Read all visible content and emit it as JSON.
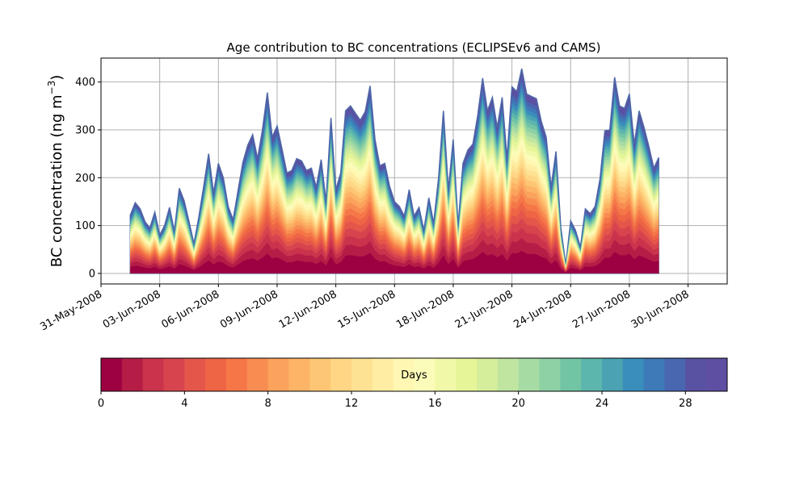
{
  "chart_data": {
    "type": "area",
    "title": "Age contribution to BC concentrations (ECLIPSEv6 and CAMS)",
    "ylabel": "BC concentration (ng m",
    "ylabel_sup": "−3",
    "ylabel_close": ")",
    "xlabel": "",
    "ylim": [
      -22,
      450
    ],
    "yticks": [
      0,
      100,
      200,
      300,
      400
    ],
    "xlim": [
      "2008-05-31T00:00",
      "2008-07-02T00:00"
    ],
    "xtick_labels": [
      "31-May-2008",
      "03-Jun-2008",
      "06-Jun-2008",
      "09-Jun-2008",
      "12-Jun-2008",
      "15-Jun-2008",
      "18-Jun-2008",
      "21-Jun-2008",
      "24-Jun-2008",
      "27-Jun-2008",
      "30-Jun-2008"
    ],
    "grid": true,
    "stacked": true,
    "series_note": "Stacked contributions by age (days), 30 bands 0–30, colour scale Spectral",
    "total": [
      [
        "2008-06-01T12:00",
        122
      ],
      [
        "2008-06-01T18:00",
        148
      ],
      [
        "2008-06-02T00:00",
        135
      ],
      [
        "2008-06-02T06:00",
        108
      ],
      [
        "2008-06-02T12:00",
        95
      ],
      [
        "2008-06-02T18:00",
        128
      ],
      [
        "2008-06-03T00:00",
        80
      ],
      [
        "2008-06-03T06:00",
        100
      ],
      [
        "2008-06-03T12:00",
        138
      ],
      [
        "2008-06-03T18:00",
        88
      ],
      [
        "2008-06-04T00:00",
        178
      ],
      [
        "2008-06-04T06:00",
        152
      ],
      [
        "2008-06-04T12:00",
        108
      ],
      [
        "2008-06-04T18:00",
        62
      ],
      [
        "2008-06-05T00:00",
        118
      ],
      [
        "2008-06-05T06:00",
        182
      ],
      [
        "2008-06-05T12:00",
        250
      ],
      [
        "2008-06-05T18:00",
        168
      ],
      [
        "2008-06-06T00:00",
        230
      ],
      [
        "2008-06-06T06:00",
        200
      ],
      [
        "2008-06-06T12:00",
        140
      ],
      [
        "2008-06-06T18:00",
        112
      ],
      [
        "2008-06-07T00:00",
        172
      ],
      [
        "2008-06-07T06:00",
        232
      ],
      [
        "2008-06-07T12:00",
        268
      ],
      [
        "2008-06-07T18:00",
        290
      ],
      [
        "2008-06-08T00:00",
        240
      ],
      [
        "2008-06-08T06:00",
        300
      ],
      [
        "2008-06-08T12:00",
        378
      ],
      [
        "2008-06-08T18:00",
        285
      ],
      [
        "2008-06-09T00:00",
        308
      ],
      [
        "2008-06-09T06:00",
        260
      ],
      [
        "2008-06-09T12:00",
        210
      ],
      [
        "2008-06-09T18:00",
        215
      ],
      [
        "2008-06-10T00:00",
        240
      ],
      [
        "2008-06-10T06:00",
        235
      ],
      [
        "2008-06-10T12:00",
        215
      ],
      [
        "2008-06-10T18:00",
        220
      ],
      [
        "2008-06-11T00:00",
        180
      ],
      [
        "2008-06-11T06:00",
        238
      ],
      [
        "2008-06-11T12:00",
        150
      ],
      [
        "2008-06-11T18:00",
        325
      ],
      [
        "2008-06-12T00:00",
        175
      ],
      [
        "2008-06-12T06:00",
        210
      ],
      [
        "2008-06-12T12:00",
        340
      ],
      [
        "2008-06-12T18:00",
        350
      ],
      [
        "2008-06-13T00:00",
        335
      ],
      [
        "2008-06-13T06:00",
        320
      ],
      [
        "2008-06-13T12:00",
        338
      ],
      [
        "2008-06-13T18:00",
        392
      ],
      [
        "2008-06-14T00:00",
        280
      ],
      [
        "2008-06-14T06:00",
        225
      ],
      [
        "2008-06-14T12:00",
        230
      ],
      [
        "2008-06-14T18:00",
        182
      ],
      [
        "2008-06-15T00:00",
        150
      ],
      [
        "2008-06-15T06:00",
        140
      ],
      [
        "2008-06-15T12:00",
        120
      ],
      [
        "2008-06-15T18:00",
        175
      ],
      [
        "2008-06-16T00:00",
        120
      ],
      [
        "2008-06-16T06:00",
        138
      ],
      [
        "2008-06-16T12:00",
        90
      ],
      [
        "2008-06-16T18:00",
        158
      ],
      [
        "2008-06-17T00:00",
        105
      ],
      [
        "2008-06-17T06:00",
        200
      ],
      [
        "2008-06-17T12:00",
        340
      ],
      [
        "2008-06-17T18:00",
        175
      ],
      [
        "2008-06-18T00:00",
        280
      ],
      [
        "2008-06-18T06:00",
        100
      ],
      [
        "2008-06-18T12:00",
        230
      ],
      [
        "2008-06-18T18:00",
        258
      ],
      [
        "2008-06-19T00:00",
        270
      ],
      [
        "2008-06-19T06:00",
        330
      ],
      [
        "2008-06-19T12:00",
        408
      ],
      [
        "2008-06-19T18:00",
        340
      ],
      [
        "2008-06-20T00:00",
        368
      ],
      [
        "2008-06-20T06:00",
        305
      ],
      [
        "2008-06-20T12:00",
        368
      ],
      [
        "2008-06-20T18:00",
        240
      ],
      [
        "2008-06-21T00:00",
        390
      ],
      [
        "2008-06-21T06:00",
        380
      ],
      [
        "2008-06-21T12:00",
        428
      ],
      [
        "2008-06-21T18:00",
        375
      ],
      [
        "2008-06-22T00:00",
        370
      ],
      [
        "2008-06-22T06:00",
        365
      ],
      [
        "2008-06-22T12:00",
        318
      ],
      [
        "2008-06-22T18:00",
        285
      ],
      [
        "2008-06-23T00:00",
        180
      ],
      [
        "2008-06-23T06:00",
        255
      ],
      [
        "2008-06-23T12:00",
        95
      ],
      [
        "2008-06-23T18:00",
        18
      ],
      [
        "2008-06-24T00:00",
        110
      ],
      [
        "2008-06-24T06:00",
        90
      ],
      [
        "2008-06-24T12:00",
        55
      ],
      [
        "2008-06-24T18:00",
        135
      ],
      [
        "2008-06-25T00:00",
        125
      ],
      [
        "2008-06-25T06:00",
        140
      ],
      [
        "2008-06-25T12:00",
        198
      ],
      [
        "2008-06-25T18:00",
        298
      ],
      [
        "2008-06-26T00:00",
        300
      ],
      [
        "2008-06-26T06:00",
        410
      ],
      [
        "2008-06-26T12:00",
        350
      ],
      [
        "2008-06-26T18:00",
        345
      ],
      [
        "2008-06-27T00:00",
        375
      ],
      [
        "2008-06-27T06:00",
        270
      ],
      [
        "2008-06-27T12:00",
        340
      ],
      [
        "2008-06-27T18:00",
        305
      ],
      [
        "2008-06-28T00:00",
        265
      ],
      [
        "2008-06-28T06:00",
        220
      ],
      [
        "2008-06-28T12:00",
        242
      ]
    ],
    "colorbar": {
      "label": "Days",
      "min": 0,
      "max": 30,
      "ticks": [
        0,
        4,
        8,
        12,
        16,
        20,
        24,
        28
      ],
      "colors": [
        "#9e0142",
        "#b51d47",
        "#cb334c",
        "#d8444e",
        "#e4564a",
        "#ee6545",
        "#f57748",
        "#f88d52",
        "#fba35c",
        "#fdb466",
        "#fdc675",
        "#fed684",
        "#fee293",
        "#feeda2",
        "#fff7b2",
        "#fbfcb9",
        "#f1f9a9",
        "#e6f598",
        "#d5ee9b",
        "#bfe5a0",
        "#a6dba4",
        "#8dd1a4",
        "#72c5a4",
        "#5db6ad",
        "#4aa2b2",
        "#3a8ebb",
        "#3f7ab8",
        "#4966b0",
        "#5952a3",
        "#5e4fa2"
      ]
    }
  }
}
